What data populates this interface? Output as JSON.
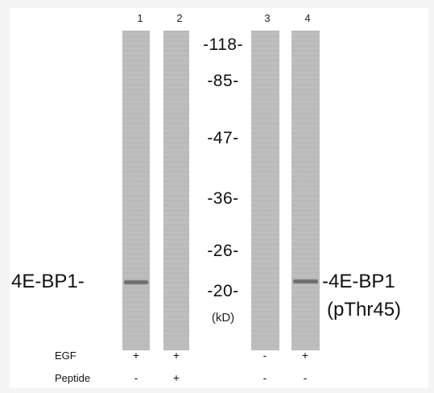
{
  "lanes": [
    {
      "number": "1",
      "band": true
    },
    {
      "number": "2",
      "band": false
    },
    {
      "number": "3",
      "band": false
    },
    {
      "number": "4",
      "band": true
    }
  ],
  "markers": [
    "-118-",
    "-85-",
    "-47-",
    "-36-",
    "-26-",
    "-20-"
  ],
  "marker_unit": "(kD)",
  "left_label": "4E-BP1-",
  "right_label_line1": "-4E-BP1",
  "right_label_line2": "(pThr45)",
  "rows": [
    {
      "label": "EGF",
      "signs": [
        "+",
        "+",
        "-",
        "+"
      ]
    },
    {
      "label": "Peptide",
      "signs": [
        "-",
        "+",
        "-",
        "-"
      ]
    }
  ],
  "colors": {
    "lane_gray": "#bdbdbd",
    "band_dark": "#6d6d6d",
    "background": "#ffffff"
  }
}
